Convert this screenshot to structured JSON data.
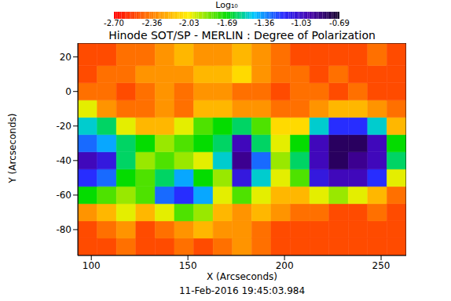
{
  "chart_data": {
    "type": "heatmap",
    "title": "Hinode SOT/SP - MERLIN : Degree of Polarization",
    "xlabel": "X (Arcseconds)",
    "ylabel": "Y (Arcseconds)",
    "annotation": "11-Feb-2016 19:45:03.984",
    "xlim": [
      93,
      263
    ],
    "ylim": [
      -95,
      28
    ],
    "xticks": [
      100,
      150,
      200,
      250
    ],
    "yticks": [
      -80,
      -60,
      -40,
      -20,
      0,
      20
    ],
    "x_bins": [
      93,
      103,
      113,
      123,
      133,
      143,
      153,
      163,
      173,
      183,
      193,
      203,
      213,
      223,
      233,
      243,
      253,
      263
    ],
    "y_bins": [
      -95,
      -85,
      -75,
      -65,
      -55,
      -45,
      -35,
      -25,
      -15,
      -5,
      5,
      15,
      28
    ],
    "cells": [
      [
        -2.5,
        -2.5,
        -2.4,
        -2.5,
        -2.5,
        -2.4,
        -2.5,
        -2.4,
        -2.3,
        -2.4,
        -2.5,
        -2.5,
        -2.5,
        -2.5,
        -2.5,
        -2.5,
        -2.5
      ],
      [
        -2.5,
        -2.4,
        -2.3,
        -2.5,
        -2.4,
        -2.3,
        -2.2,
        -2.3,
        -2.3,
        -2.4,
        -2.5,
        -2.5,
        -2.5,
        -2.5,
        -2.5,
        -2.5,
        -2.5
      ],
      [
        -2.3,
        -2.2,
        -2.0,
        -2.2,
        -2.0,
        -1.8,
        -1.9,
        -2.2,
        -2.3,
        -2.2,
        -2.3,
        -2.4,
        -2.4,
        -2.5,
        -2.5,
        -2.4,
        -2.5
      ],
      [
        -1.7,
        -1.8,
        -1.9,
        -1.8,
        -1.3,
        -1.2,
        -1.4,
        -2.0,
        -1.8,
        -2.0,
        -2.2,
        -2.2,
        -2.0,
        -1.9,
        -2.0,
        -2.2,
        -2.4
      ],
      [
        -1.2,
        -1.3,
        -1.7,
        -1.8,
        -1.6,
        -1.4,
        -1.7,
        -1.9,
        -1.1,
        -1.5,
        -2.0,
        -1.8,
        -1.1,
        -1.0,
        -1.0,
        -1.2,
        -2.0
      ],
      [
        -1.0,
        -1.1,
        -1.6,
        -1.9,
        -1.8,
        -1.9,
        -2.0,
        -1.5,
        -0.9,
        -1.3,
        -1.9,
        -1.6,
        -1.0,
        -0.8,
        -0.9,
        -1.0,
        -1.6
      ],
      [
        -1.3,
        -1.4,
        -1.6,
        -1.7,
        -1.9,
        -1.8,
        -1.7,
        -1.6,
        -1.0,
        -1.6,
        -2.0,
        -1.7,
        -1.0,
        -0.8,
        -0.8,
        -1.0,
        -1.7
      ],
      [
        -1.5,
        -1.6,
        -2.0,
        -2.2,
        -2.2,
        -2.0,
        -1.8,
        -1.7,
        -1.6,
        -1.8,
        -2.1,
        -2.1,
        -1.5,
        -1.2,
        -1.2,
        -1.5,
        -2.2
      ],
      [
        -2.0,
        -2.3,
        -2.4,
        -2.4,
        -2.3,
        -2.4,
        -2.2,
        -2.2,
        -2.3,
        -2.3,
        -2.4,
        -2.4,
        -2.3,
        -2.2,
        -2.2,
        -2.3,
        -2.4
      ],
      [
        -2.4,
        -2.4,
        -2.5,
        -2.4,
        -2.3,
        -2.4,
        -2.3,
        -2.3,
        -2.4,
        -2.4,
        -2.5,
        -2.4,
        -2.4,
        -2.5,
        -2.4,
        -2.5,
        -2.5
      ],
      [
        -2.5,
        -2.4,
        -2.4,
        -2.3,
        -2.3,
        -2.3,
        -2.2,
        -2.2,
        -2.1,
        -2.3,
        -2.4,
        -2.4,
        -2.5,
        -2.4,
        -2.5,
        -2.5,
        -2.5
      ],
      [
        -2.5,
        -2.5,
        -2.4,
        -2.4,
        -2.3,
        -2.2,
        -2.3,
        -2.3,
        -2.2,
        -2.3,
        -2.4,
        -2.5,
        -2.5,
        -2.5,
        -2.5,
        -2.4,
        -2.5
      ]
    ],
    "colorbar": {
      "label": "Log₁₀",
      "range": [
        -2.7,
        -0.69
      ],
      "ticks": [
        {
          "value": -2.7,
          "label": "-2.70"
        },
        {
          "value": -2.36,
          "label": "-2.36"
        },
        {
          "value": -2.03,
          "label": "-2.03"
        },
        {
          "value": -1.69,
          "label": "-1.69"
        },
        {
          "value": -1.36,
          "label": "-1.36"
        },
        {
          "value": -1.03,
          "label": "-1.03"
        },
        {
          "value": -0.69,
          "label": "-0.69"
        }
      ]
    }
  }
}
